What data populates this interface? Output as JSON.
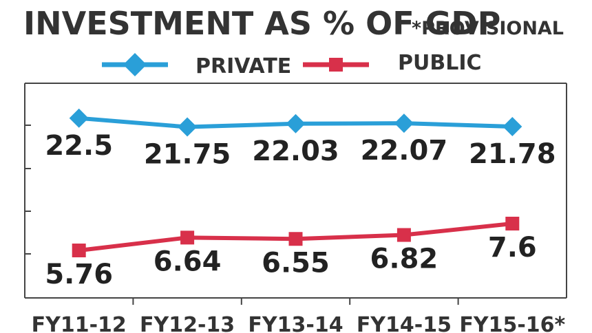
{
  "chart_data": {
    "type": "line",
    "title": "INVESTMENT AS % OF GDP",
    "subtitle": "*PROVISIONAL",
    "categories": [
      "FY11-12",
      "FY12-13",
      "FY13-14",
      "FY14-15",
      "FY15-16*"
    ],
    "series": [
      {
        "name": "PRIVATE",
        "values": [
          22.5,
          21.75,
          22.03,
          22.07,
          21.78
        ],
        "labels": [
          "22.5",
          "21.75",
          "22.03",
          "22.07",
          "21.78"
        ],
        "color": "#2a9fd8",
        "marker": "diamond"
      },
      {
        "name": "PUBLIC",
        "values": [
          5.76,
          6.64,
          6.55,
          6.82,
          7.6
        ],
        "labels": [
          "5.76",
          "6.64",
          "6.55",
          "6.82",
          "7.6"
        ],
        "color": "#d8304a",
        "marker": "square"
      }
    ],
    "xlabel": "",
    "ylabel": "",
    "ylim": [
      0,
      26
    ],
    "grid": false,
    "legend_position": "top"
  }
}
